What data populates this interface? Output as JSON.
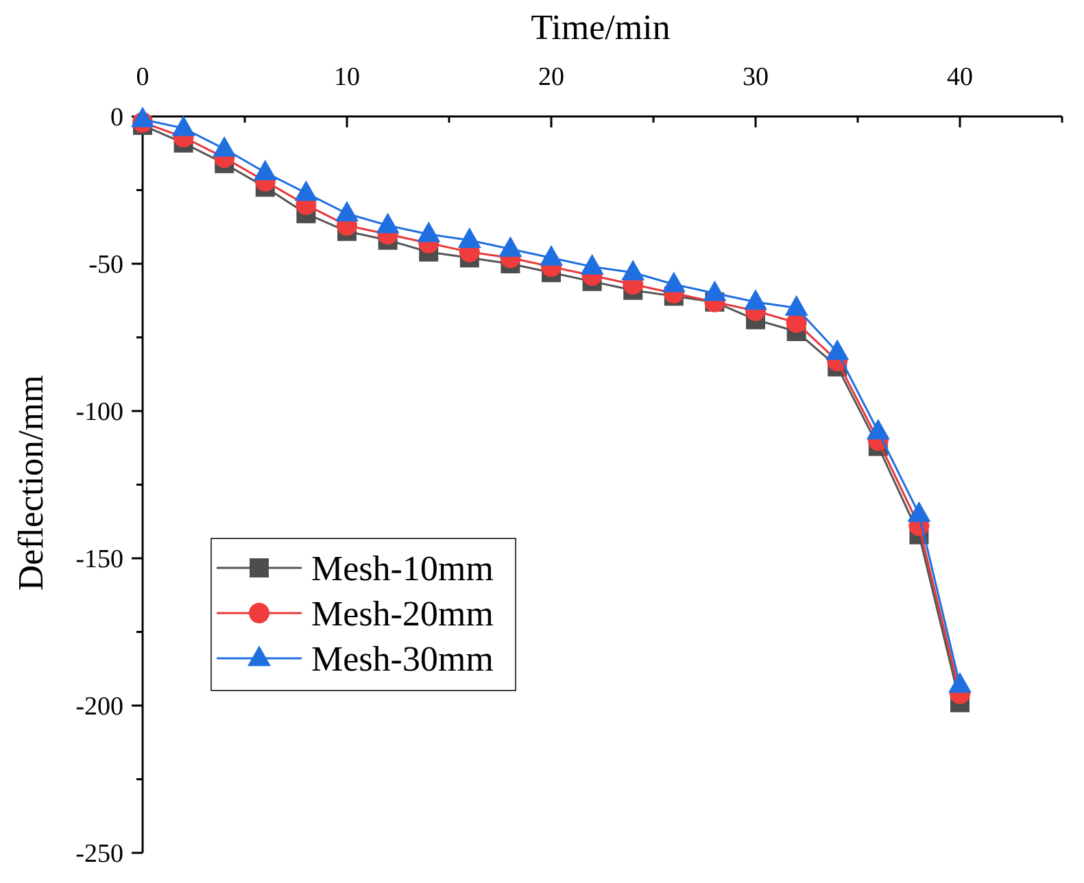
{
  "chart_data": {
    "type": "line",
    "title": "",
    "xlabel": "Time/min",
    "ylabel": "Deflection/mm",
    "xlim": [
      0,
      45
    ],
    "ylim": [
      -250,
      0
    ],
    "x_ticks": [
      0,
      10,
      20,
      30,
      40
    ],
    "x_tick_labels": [
      "0",
      "10",
      "20",
      "30",
      "40"
    ],
    "y_ticks": [
      0,
      -50,
      -100,
      -150,
      -200,
      -250
    ],
    "y_tick_labels": [
      "0",
      "-50",
      "-100",
      "-150",
      "-200",
      "-250"
    ],
    "x_axis_position": "top",
    "grid": false,
    "legend_position": "lower-left",
    "x": [
      0,
      2,
      4,
      6,
      8,
      10,
      12,
      14,
      16,
      18,
      20,
      22,
      24,
      26,
      28,
      30,
      32,
      34,
      36,
      38,
      40
    ],
    "series": [
      {
        "name": "Mesh-10mm",
        "color": "#4d4d4d",
        "line_color": "#555555",
        "marker": "square",
        "values": [
          -3,
          -9,
          -16,
          -24,
          -33,
          -39,
          -42,
          -46,
          -48,
          -50,
          -53,
          -56,
          -59,
          -61,
          -63,
          -69,
          -73,
          -85,
          -112,
          -142,
          -199
        ]
      },
      {
        "name": "Mesh-20mm",
        "color": "#f03c3c",
        "line_color": "#e8373a",
        "marker": "circle",
        "values": [
          -2,
          -7,
          -14,
          -22,
          -30,
          -37,
          -40,
          -43,
          -46,
          -48,
          -51,
          -54,
          -57,
          -60,
          -63,
          -66,
          -70,
          -83,
          -110,
          -139,
          -196
        ]
      },
      {
        "name": "Mesh-30mm",
        "color": "#1f6fe0",
        "line_color": "#1f6fe0",
        "marker": "triangle",
        "values": [
          -1,
          -4,
          -11,
          -19,
          -26,
          -33,
          -37,
          -40,
          -42,
          -45,
          -48,
          -51,
          -53,
          -57,
          -60,
          -63,
          -65,
          -80,
          -107,
          -135,
          -193
        ]
      }
    ]
  }
}
